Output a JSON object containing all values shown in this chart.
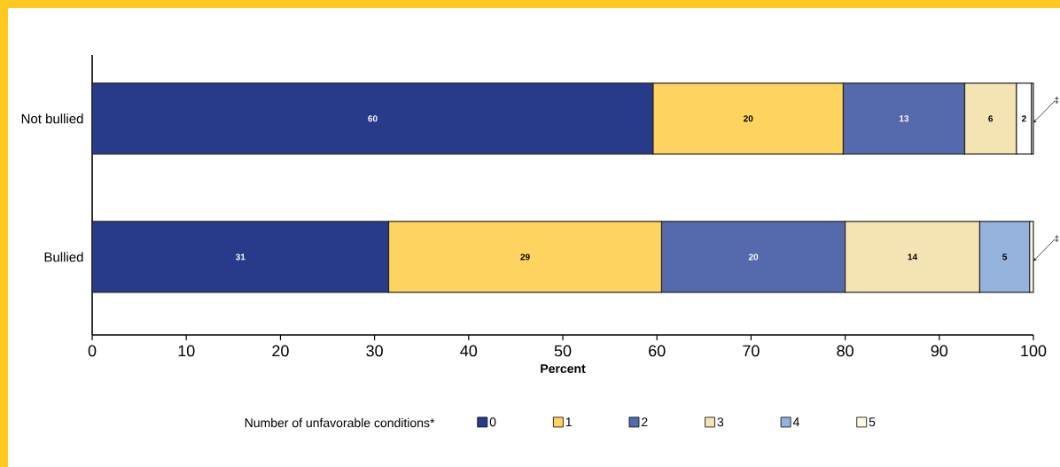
{
  "chart_data": {
    "type": "bar",
    "orientation": "horizontal",
    "stacked": true,
    "categories": [
      "Not bullied",
      "Bullied"
    ],
    "series": [
      {
        "name": "0",
        "color": "#283a8a",
        "values": [
          59.6,
          31.5
        ],
        "value_labels": [
          "60",
          "31"
        ]
      },
      {
        "name": "1",
        "color": "#ffd35f",
        "values": [
          20.2,
          29.0
        ],
        "value_labels": [
          "20",
          "29"
        ]
      },
      {
        "name": "2",
        "color": "#5569ad",
        "values": [
          12.9,
          19.5
        ],
        "value_labels": [
          "13",
          "20"
        ]
      },
      {
        "name": "3",
        "color": "#f4e4b3",
        "values": [
          5.5,
          14.3
        ],
        "value_labels": [
          "6",
          "14"
        ]
      },
      {
        "name": "4",
        "color": "#95b3dc",
        "colors": [
          "#ffffff",
          "#95b3dc"
        ],
        "values": [
          1.6,
          5.3
        ],
        "value_labels": [
          "2",
          "5"
        ]
      },
      {
        "name": "5",
        "color": "#fdf8e4",
        "values": [
          0.2,
          0.4
        ],
        "value_labels": [
          "‡",
          "‡"
        ]
      }
    ],
    "xlim": [
      0,
      100
    ],
    "xticks": [
      0,
      10,
      20,
      30,
      40,
      50,
      60,
      70,
      80,
      90,
      100
    ],
    "xlabel": "Percent",
    "legend_title": "Number of unfavorable conditions*",
    "legend": "bottom"
  }
}
